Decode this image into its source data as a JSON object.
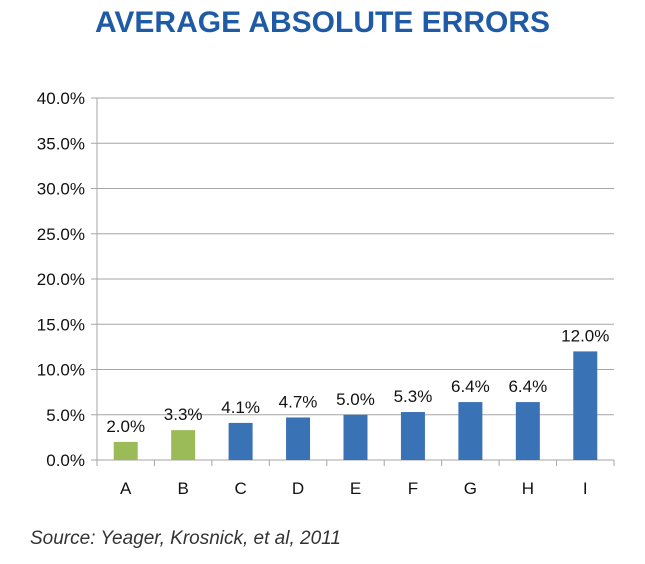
{
  "chart_data": {
    "type": "bar",
    "title": "AVERAGE ABSOLUTE ERRORS",
    "source": "Source: Yeager, Krosnick, et al, 2011",
    "categories": [
      "A",
      "B",
      "C",
      "D",
      "E",
      "F",
      "G",
      "H",
      "I"
    ],
    "values": [
      2.0,
      3.3,
      4.1,
      4.7,
      5.0,
      5.3,
      6.4,
      6.4,
      12.0
    ],
    "data_labels": [
      "2.0%",
      "3.3%",
      "4.1%",
      "4.7%",
      "5.0%",
      "5.3%",
      "6.4%",
      "6.4%",
      "12.0%"
    ],
    "bar_colors": [
      "#9bbb59",
      "#9bbb59",
      "#3a72b6",
      "#3a72b6",
      "#3a72b6",
      "#3a72b6",
      "#3a72b6",
      "#3a72b6",
      "#3a72b6"
    ],
    "yticks": [
      "0.0%",
      "5.0%",
      "10.0%",
      "15.0%",
      "20.0%",
      "25.0%",
      "30.0%",
      "35.0%",
      "40.0%"
    ],
    "ylim": [
      0,
      40
    ],
    "grid": true,
    "title_color": "#1f5aa6",
    "grid_color": "#a6a6a6"
  }
}
